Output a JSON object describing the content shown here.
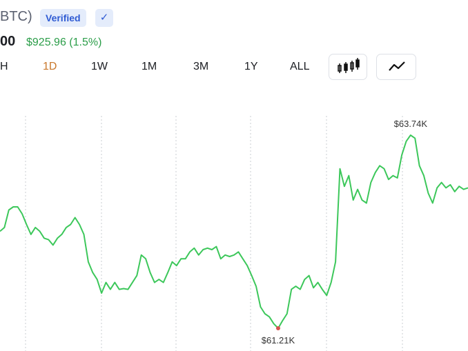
{
  "header": {
    "ticker": "BTC)",
    "badge": "Verified",
    "check": "✓",
    "price": "00",
    "change": "$925.96 (1.5%)"
  },
  "tabs": [
    "H",
    "1D",
    "1W",
    "1M",
    "3M",
    "1Y",
    "ALL"
  ],
  "chart_data": {
    "type": "line",
    "color": "#3cc75a",
    "values": [
      62.48,
      62.53,
      62.76,
      62.8,
      62.8,
      62.71,
      62.57,
      62.44,
      62.53,
      62.48,
      62.39,
      62.37,
      62.3,
      62.39,
      62.44,
      62.53,
      62.57,
      62.66,
      62.57,
      62.44,
      62.08,
      61.94,
      61.85,
      61.67,
      61.81,
      61.72,
      61.81,
      61.72,
      61.73,
      61.72,
      61.81,
      61.9,
      62.17,
      62.12,
      61.94,
      61.81,
      61.85,
      61.81,
      61.94,
      62.08,
      62.03,
      62.12,
      62.12,
      62.21,
      62.26,
      62.17,
      62.24,
      62.26,
      62.24,
      62.28,
      62.12,
      62.17,
      62.15,
      62.17,
      62.21,
      62.12,
      62.03,
      61.9,
      61.76,
      61.49,
      61.4,
      61.36,
      61.27,
      61.21,
      61.31,
      61.4,
      61.72,
      61.76,
      61.72,
      61.85,
      61.9,
      61.74,
      61.81,
      61.72,
      61.64,
      61.81,
      62.08,
      63.3,
      63.07,
      63.21,
      62.89,
      63.03,
      62.89,
      62.85,
      63.12,
      63.25,
      63.34,
      63.3,
      63.16,
      63.21,
      63.18,
      63.48,
      63.66,
      63.74,
      63.7,
      63.34,
      63.21,
      62.98,
      62.85,
      63.05,
      63.12,
      63.05,
      63.09,
      63.0,
      63.07,
      63.03,
      63.05
    ],
    "annotations": [
      {
        "label": "$63.74K",
        "value": 63.74
      },
      {
        "label": "$61.21K",
        "value": 61.21
      }
    ]
  }
}
